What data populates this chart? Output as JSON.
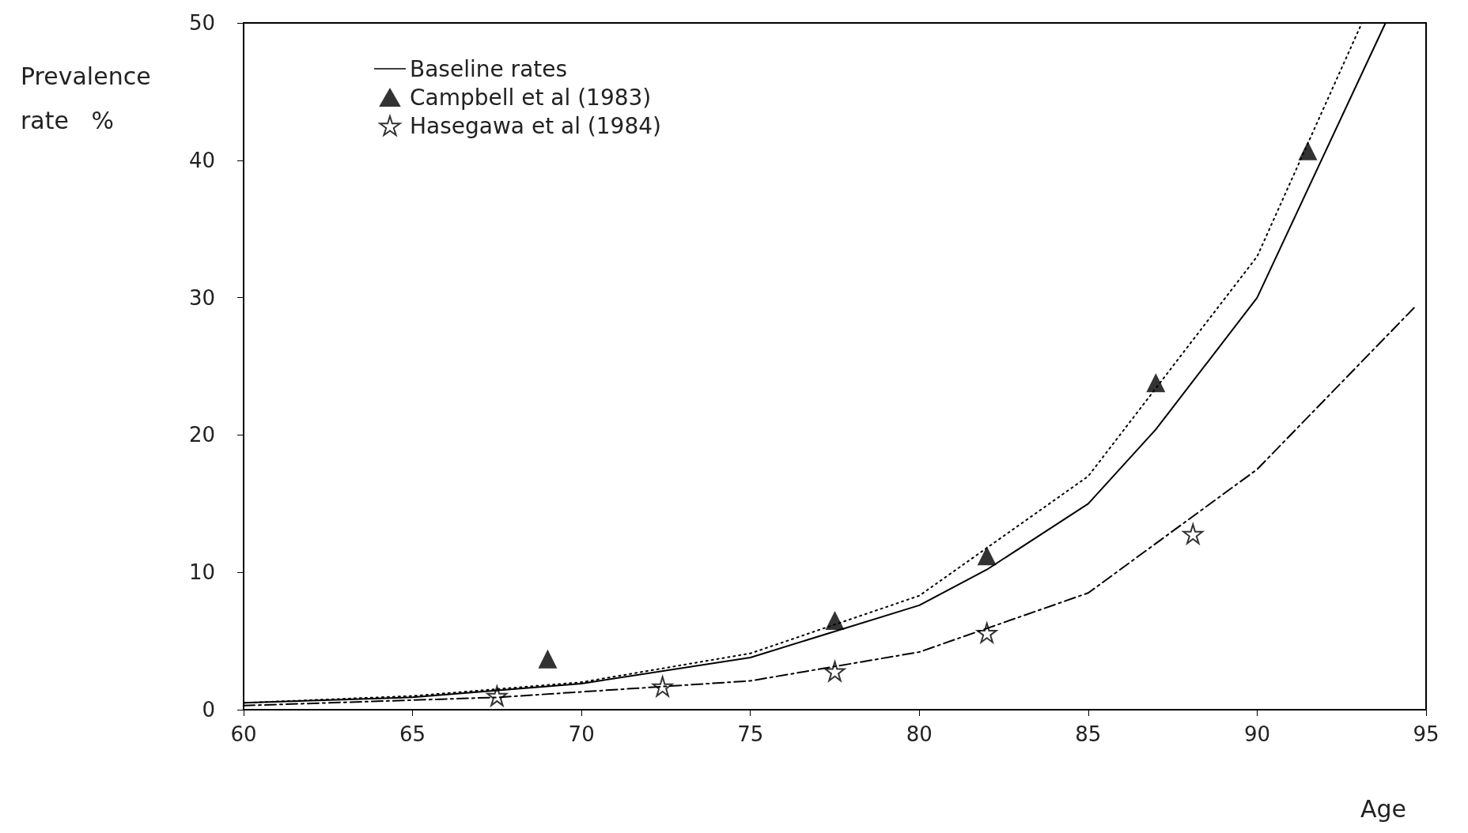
{
  "chart_data": {
    "type": "line",
    "xlabel": "Age",
    "ylabel": "Prevalence\nrate   %",
    "xlim": [
      60,
      95
    ],
    "xticks": [
      60,
      65,
      70,
      75,
      80,
      85,
      90,
      95
    ],
    "ylim": [
      0,
      50
    ],
    "yticks": [
      0,
      10,
      20,
      30,
      40,
      50
    ],
    "grid": false,
    "legend": "top left",
    "series": [
      {
        "name": "Baseline rates",
        "color": "#000000",
        "line_style": "solid",
        "marker": "none",
        "x": [
          60,
          65,
          70,
          75,
          80,
          82,
          85,
          87,
          90,
          93.8
        ],
        "values": [
          0.5,
          0.9,
          1.9,
          3.8,
          7.6,
          10.2,
          15,
          20.4,
          30,
          50
        ]
      },
      {
        "name": "Campbell et al (1983)",
        "type": "scatter",
        "color": "#000000",
        "marker": "triangle",
        "x": [
          69,
          77.5,
          82,
          87,
          91.5
        ],
        "values": [
          3.7,
          6.5,
          11.2,
          23.8,
          40.7
        ]
      },
      {
        "type": "line",
        "color": "#000000",
        "line_style": "dotted",
        "marker": "none",
        "x": [
          60,
          65,
          70,
          75,
          80,
          85,
          90,
          93.1
        ],
        "values": [
          0.5,
          1,
          2,
          4.1,
          8.3,
          17,
          33,
          50
        ]
      },
      {
        "name": "Hasegawa et al (1984)",
        "type": "scatter",
        "color": "#000000",
        "marker": "star",
        "x": [
          67.5,
          72.4,
          77.5,
          82,
          88.1
        ],
        "values": [
          1,
          1.7,
          2.8,
          5.6,
          12.8
        ]
      },
      {
        "type": "line",
        "color": "#000000",
        "line_style": "dashed",
        "marker": "none",
        "x": [
          60,
          67.5,
          75,
          80,
          85,
          90,
          94.7
        ],
        "values": [
          0.3,
          0.9,
          2.1,
          4.2,
          8.5,
          17.5,
          29.4
        ]
      }
    ]
  }
}
